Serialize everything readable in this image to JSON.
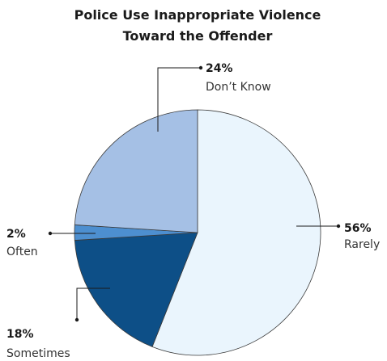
{
  "chart_data": {
    "type": "pie",
    "title": "Police Use Inappropriate Violence",
    "subtitle": "Toward the Offender",
    "slices": [
      {
        "label": "Rarely",
        "value": 56,
        "display": "56%",
        "color": "#eaf5fd"
      },
      {
        "label": "Sometimes",
        "value": 18,
        "display": "18%",
        "color": "#0d4f87"
      },
      {
        "label": "Often",
        "value": 2,
        "display": "2%",
        "color": "#4d8fd0"
      },
      {
        "label": "Don’t Know",
        "value": 24,
        "display": "24%",
        "color": "#a5c0e5"
      }
    ],
    "legend": "none"
  }
}
